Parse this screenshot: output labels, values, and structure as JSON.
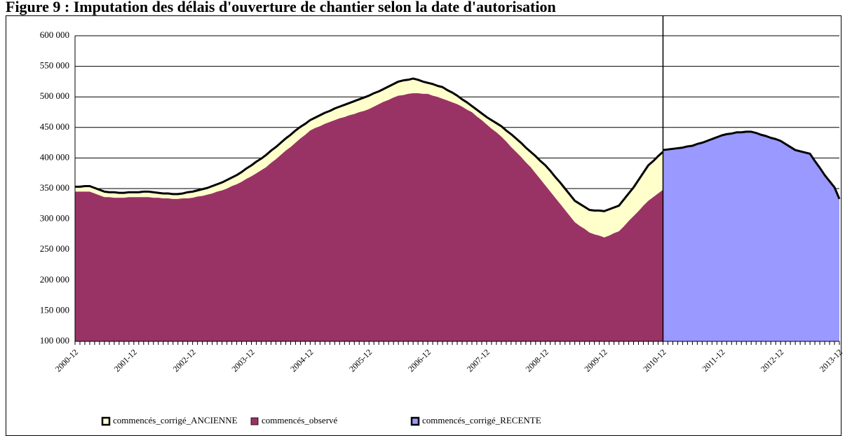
{
  "chart_data": {
    "type": "area",
    "title": "Figure 9 : Imputation des délais d'ouverture de chantier selon la date d'autorisation",
    "categories": [
      "2000-12",
      null,
      null,
      null,
      null,
      null,
      null,
      null,
      null,
      null,
      null,
      null,
      "2001-12",
      null,
      null,
      null,
      null,
      null,
      null,
      null,
      null,
      null,
      null,
      null,
      "2002-12",
      null,
      null,
      null,
      null,
      null,
      null,
      null,
      null,
      null,
      null,
      null,
      "2003-12",
      null,
      null,
      null,
      null,
      null,
      null,
      null,
      null,
      null,
      null,
      null,
      "2004-12",
      null,
      null,
      null,
      null,
      null,
      null,
      null,
      null,
      null,
      null,
      null,
      "2005-12",
      null,
      null,
      null,
      null,
      null,
      null,
      null,
      null,
      null,
      null,
      null,
      "2006-12",
      null,
      null,
      null,
      null,
      null,
      null,
      null,
      null,
      null,
      null,
      null,
      "2007-12",
      null,
      null,
      null,
      null,
      null,
      null,
      null,
      null,
      null,
      null,
      null,
      "2008-12",
      null,
      null,
      null,
      null,
      null,
      null,
      null,
      null,
      null,
      null,
      null,
      "2009-12",
      null,
      null,
      null,
      null,
      null,
      null,
      null,
      null,
      null,
      null,
      null,
      "2010-12",
      null,
      null,
      null,
      null,
      null,
      null,
      null,
      null,
      null,
      null,
      null,
      "2011-12",
      null,
      null,
      null,
      null,
      null,
      null,
      null,
      null,
      null,
      null,
      null,
      "2012-12",
      null,
      null,
      null,
      null,
      null,
      null,
      null,
      null,
      null,
      null,
      null,
      "2013-12"
    ],
    "series": [
      {
        "name": "commencés_corrigé_ANCIENNE",
        "color": "#ffffcc",
        "edge_color": "#000000",
        "values": [
          353000,
          353000,
          354000,
          354000,
          351000,
          348000,
          345000,
          344000,
          344000,
          343000,
          343000,
          344000,
          344000,
          344000,
          345000,
          345000,
          344000,
          343000,
          342000,
          342000,
          341000,
          341000,
          342000,
          344000,
          345000,
          347000,
          349000,
          351000,
          354000,
          357000,
          360000,
          364000,
          368000,
          372000,
          377000,
          383000,
          388000,
          394000,
          399000,
          405000,
          412000,
          418000,
          425000,
          432000,
          438000,
          445000,
          451000,
          456000,
          462000,
          466000,
          470000,
          474000,
          477000,
          481000,
          484000,
          487000,
          490000,
          493000,
          496000,
          499000,
          502000,
          506000,
          509000,
          513000,
          517000,
          521000,
          525000,
          527000,
          528000,
          530000,
          528000,
          525000,
          523000,
          521000,
          518000,
          516000,
          511000,
          507000,
          502000,
          496000,
          491000,
          485000,
          479000,
          473000,
          467000,
          462000,
          457000,
          452000,
          445000,
          439000,
          432000,
          425000,
          417000,
          410000,
          403000,
          395000,
          388000,
          379000,
          369000,
          360000,
          350000,
          340000,
          330000,
          325000,
          320000,
          315000,
          314000,
          314000,
          313000,
          316000,
          319000,
          322000,
          332000,
          342000,
          352000,
          364000,
          376000,
          388000,
          395000,
          403000,
          410000,
          null,
          null,
          null,
          null,
          null,
          null,
          null,
          null,
          null,
          null,
          null,
          null,
          null,
          null,
          null,
          null,
          null,
          null,
          null,
          null,
          null,
          null,
          null,
          null,
          null,
          null,
          null,
          null,
          null,
          null,
          null,
          null,
          null,
          null,
          null,
          null
        ]
      },
      {
        "name": "commencés_observé",
        "color": "#993366",
        "values": [
          345000,
          345000,
          345000,
          345000,
          342000,
          339000,
          336000,
          336000,
          335000,
          335000,
          335000,
          336000,
          336000,
          336000,
          336000,
          336000,
          335000,
          335000,
          334000,
          334000,
          333000,
          333000,
          334000,
          334000,
          335000,
          337000,
          338000,
          340000,
          342000,
          345000,
          347000,
          350000,
          354000,
          357000,
          361000,
          366000,
          370000,
          375000,
          380000,
          385000,
          392000,
          398000,
          405000,
          412000,
          418000,
          425000,
          432000,
          438000,
          445000,
          449000,
          452000,
          456000,
          459000,
          462000,
          465000,
          467000,
          470000,
          472000,
          475000,
          477000,
          480000,
          484000,
          488000,
          492000,
          495000,
          499000,
          502000,
          503000,
          505000,
          506000,
          506000,
          505000,
          505000,
          502000,
          500000,
          497000,
          494000,
          491000,
          488000,
          484000,
          479000,
          475000,
          468000,
          462000,
          455000,
          448000,
          442000,
          435000,
          427000,
          418000,
          410000,
          402000,
          393000,
          385000,
          375000,
          365000,
          355000,
          345000,
          335000,
          325000,
          315000,
          305000,
          295000,
          289000,
          284000,
          278000,
          275000,
          273000,
          270000,
          273000,
          277000,
          280000,
          288000,
          297000,
          305000,
          313000,
          322000,
          330000,
          336000,
          342000,
          348000,
          null,
          null,
          null,
          null,
          null,
          null,
          null,
          null,
          null,
          null,
          null,
          null,
          null,
          null,
          null,
          null,
          null,
          null,
          null,
          null,
          null,
          null,
          null,
          null,
          null,
          null,
          null,
          null,
          null,
          null,
          null,
          null,
          null,
          null,
          null,
          null
        ]
      },
      {
        "name": "commencés_corrigé_RECENTE",
        "color": "#9999ff",
        "edge_color": "#000000",
        "values": [
          null,
          null,
          null,
          null,
          null,
          null,
          null,
          null,
          null,
          null,
          null,
          null,
          null,
          null,
          null,
          null,
          null,
          null,
          null,
          null,
          null,
          null,
          null,
          null,
          null,
          null,
          null,
          null,
          null,
          null,
          null,
          null,
          null,
          null,
          null,
          null,
          null,
          null,
          null,
          null,
          null,
          null,
          null,
          null,
          null,
          null,
          null,
          null,
          null,
          null,
          null,
          null,
          null,
          null,
          null,
          null,
          null,
          null,
          null,
          null,
          null,
          null,
          null,
          null,
          null,
          null,
          null,
          null,
          null,
          null,
          null,
          null,
          null,
          null,
          null,
          null,
          null,
          null,
          null,
          null,
          null,
          null,
          null,
          null,
          null,
          null,
          null,
          null,
          null,
          null,
          null,
          null,
          null,
          null,
          null,
          null,
          null,
          null,
          null,
          null,
          null,
          null,
          null,
          null,
          null,
          null,
          null,
          null,
          null,
          null,
          null,
          null,
          null,
          null,
          null,
          null,
          null,
          null,
          null,
          null,
          413000,
          414000,
          415000,
          416000,
          417000,
          419000,
          420000,
          423000,
          425000,
          428000,
          431000,
          434000,
          437000,
          439000,
          440000,
          442000,
          442000,
          443000,
          443000,
          441000,
          438000,
          436000,
          433000,
          431000,
          428000,
          423000,
          418000,
          413000,
          411000,
          409000,
          407000,
          395000,
          384000,
          372000,
          362000,
          352000,
          333000
        ]
      }
    ],
    "ylim": [
      100000,
      600000
    ],
    "yticks": [
      {
        "value": 100000,
        "label": "100 000"
      },
      {
        "value": 150000,
        "label": "150 000"
      },
      {
        "value": 200000,
        "label": "200 000"
      },
      {
        "value": 250000,
        "label": "250 000"
      },
      {
        "value": 300000,
        "label": "300 000"
      },
      {
        "value": 350000,
        "label": "350 000"
      },
      {
        "value": 400000,
        "label": "400 000"
      },
      {
        "value": 450000,
        "label": "450 000"
      },
      {
        "value": 500000,
        "label": "500 000"
      },
      {
        "value": 550000,
        "label": "550 000"
      },
      {
        "value": 600000,
        "label": "600 000"
      }
    ],
    "grid": true,
    "legend": "bottom"
  }
}
